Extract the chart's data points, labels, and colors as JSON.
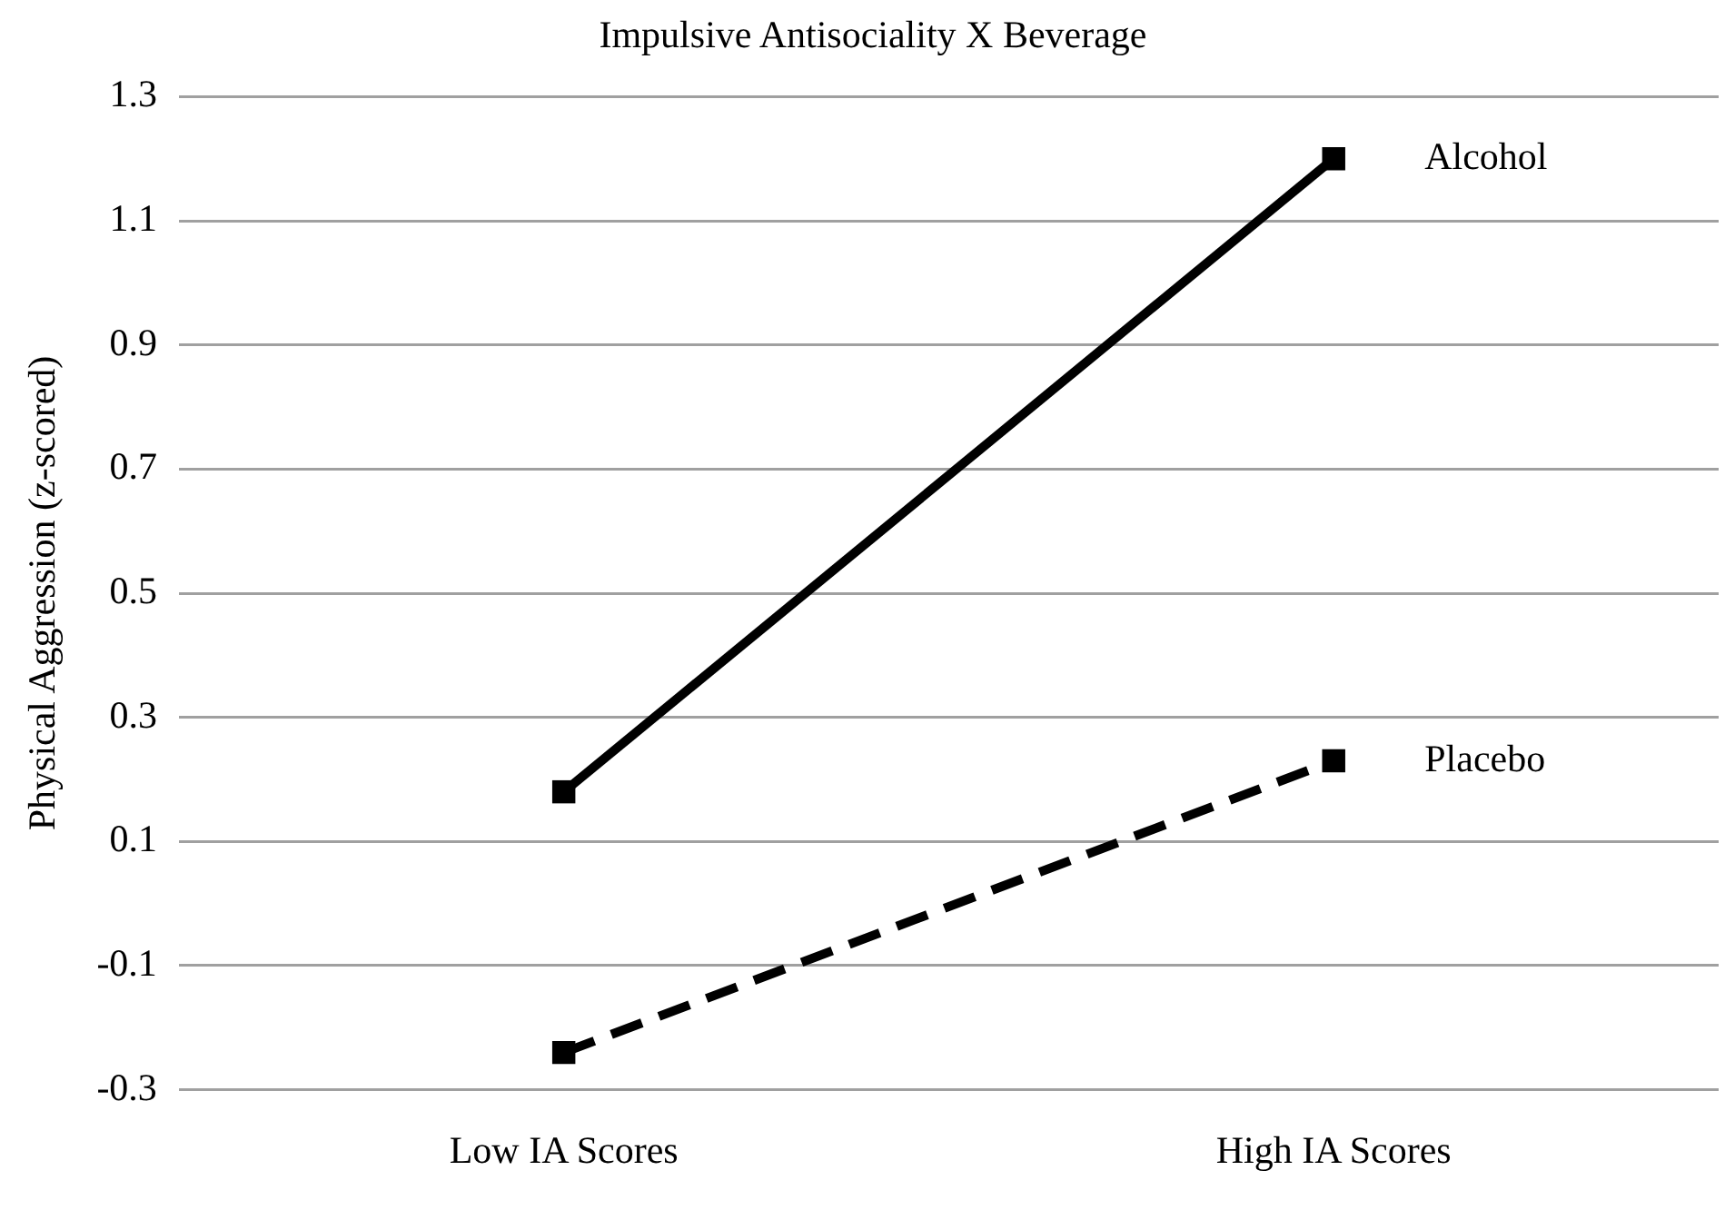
{
  "chart_data": {
    "type": "line",
    "title": "Impulsive Antisociality X Beverage",
    "ylabel": "Physical Aggression (z-scored)",
    "categories": [
      "Low IA Scores",
      "High IA Scores"
    ],
    "series": [
      {
        "name": "Alcohol",
        "color": "#000000",
        "values": [
          0.18,
          1.2
        ],
        "line_style": "solid"
      },
      {
        "name": "Placebo",
        "color": "#000000",
        "values": [
          -0.24,
          0.23
        ],
        "line_style": "dashed"
      }
    ],
    "ylim": [
      -0.3,
      1.3
    ],
    "yticks": [
      -0.3,
      -0.1,
      0.1,
      0.3,
      0.5,
      0.7,
      0.9,
      1.1,
      1.3
    ],
    "grid": "y",
    "legend": false,
    "marker": "square"
  }
}
